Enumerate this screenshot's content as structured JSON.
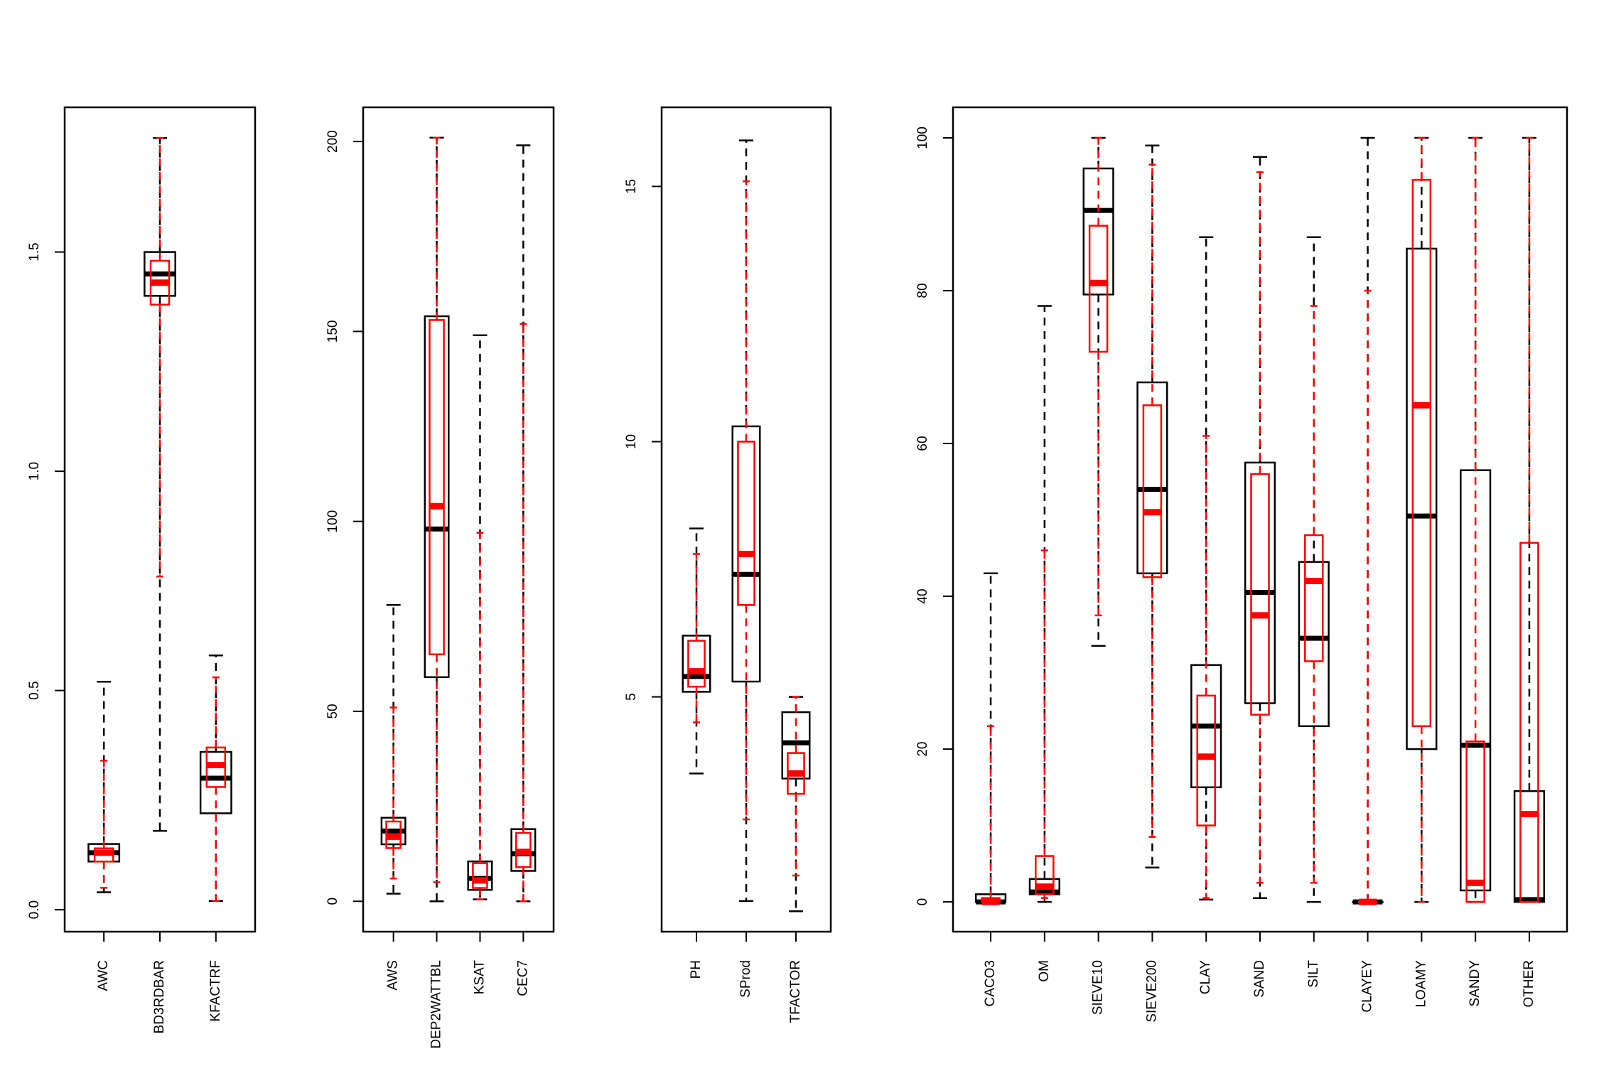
{
  "colors": {
    "series_a": "#000000",
    "series_b": "#ff0000",
    "background": "#ffffff"
  },
  "chart_data": [
    {
      "type": "boxplot",
      "ylim": [
        -0.05,
        1.83
      ],
      "yticks": [
        0.0,
        0.5,
        1.0,
        1.5
      ],
      "ytick_labels": [
        "0.0",
        "0.5",
        "1.0",
        "1.5"
      ],
      "categories": [
        "AWC",
        "BD3RDBAR",
        "KFACTRF"
      ],
      "series": [
        {
          "color": "#000000",
          "boxes": [
            {
              "min": 0.04,
              "q1": 0.11,
              "median": 0.13,
              "q3": 0.15,
              "max": 0.52
            },
            {
              "min": 0.18,
              "q1": 1.4,
              "median": 1.45,
              "q3": 1.5,
              "max": 1.76
            },
            {
              "min": 0.02,
              "q1": 0.22,
              "median": 0.3,
              "q3": 0.36,
              "max": 0.58
            }
          ]
        },
        {
          "color": "#ff0000",
          "boxes": [
            {
              "min": 0.05,
              "q1": 0.11,
              "median": 0.13,
              "q3": 0.14,
              "max": 0.34
            },
            {
              "min": 0.76,
              "q1": 1.38,
              "median": 1.43,
              "q3": 1.48,
              "max": 1.76
            },
            {
              "min": 0.02,
              "q1": 0.28,
              "median": 0.33,
              "q3": 0.37,
              "max": 0.53
            }
          ]
        }
      ]
    },
    {
      "type": "boxplot",
      "ylim": [
        -8,
        209
      ],
      "yticks": [
        0,
        50,
        100,
        150,
        200
      ],
      "ytick_labels": [
        "0",
        "50",
        "100",
        "150",
        "200"
      ],
      "categories": [
        "AWS",
        "DEP2WATTBL",
        "KSAT",
        "CEC7"
      ],
      "series": [
        {
          "color": "#000000",
          "boxes": [
            {
              "min": 2,
              "q1": 15,
              "median": 18.5,
              "q3": 22,
              "max": 78
            },
            {
              "min": 0,
              "q1": 59,
              "median": 98,
              "q3": 154,
              "max": 201
            },
            {
              "min": 0.5,
              "q1": 3,
              "median": 6,
              "q3": 10.5,
              "max": 149
            },
            {
              "min": 0,
              "q1": 8,
              "median": 12.5,
              "q3": 19,
              "max": 199
            }
          ]
        },
        {
          "color": "#ff0000",
          "boxes": [
            {
              "min": 6,
              "q1": 14,
              "median": 17,
              "q3": 21,
              "max": 51
            },
            {
              "min": 5,
              "q1": 65,
              "median": 104,
              "q3": 153,
              "max": 201
            },
            {
              "min": 0.5,
              "q1": 3.5,
              "median": 5.5,
              "q3": 10,
              "max": 97
            },
            {
              "min": 0,
              "q1": 9,
              "median": 13,
              "q3": 18,
              "max": 152
            }
          ]
        }
      ]
    },
    {
      "type": "boxplot",
      "ylim": [
        0.4,
        16.55
      ],
      "yticks": [
        5,
        10,
        15
      ],
      "ytick_labels": [
        "5",
        "10",
        "15"
      ],
      "categories": [
        "PH",
        "SProd",
        "TFACTOR"
      ],
      "series": [
        {
          "color": "#000000",
          "boxes": [
            {
              "min": 3.5,
              "q1": 5.1,
              "median": 5.4,
              "q3": 6.2,
              "max": 8.3
            },
            {
              "min": 1.0,
              "q1": 5.3,
              "median": 7.4,
              "q3": 10.3,
              "max": 15.9
            },
            {
              "min": 0.8,
              "q1": 3.4,
              "median": 4.1,
              "q3": 4.7,
              "max": 5.0
            }
          ]
        },
        {
          "color": "#ff0000",
          "boxes": [
            {
              "min": 4.5,
              "q1": 5.2,
              "median": 5.5,
              "q3": 6.1,
              "max": 7.8
            },
            {
              "min": 2.6,
              "q1": 6.8,
              "median": 7.8,
              "q3": 10.0,
              "max": 15.1
            },
            {
              "min": 1.5,
              "q1": 3.1,
              "median": 3.5,
              "q3": 3.9,
              "max": 5.0
            }
          ]
        }
      ]
    },
    {
      "type": "boxplot",
      "ylim": [
        -3.9,
        104
      ],
      "yticks": [
        0,
        20,
        40,
        60,
        80,
        100
      ],
      "ytick_labels": [
        "0",
        "20",
        "40",
        "60",
        "80",
        "100"
      ],
      "categories": [
        "CACO3",
        "OM",
        "SIEVE10",
        "SIEVE200",
        "CLAY",
        "SAND",
        "SILT",
        "CLAYEY",
        "LOAMY",
        "SANDY",
        "OTHER"
      ],
      "series": [
        {
          "color": "#000000",
          "boxes": [
            {
              "min": 0,
              "q1": 0,
              "median": 0,
              "q3": 1,
              "max": 43
            },
            {
              "min": 0,
              "q1": 1,
              "median": 1.3,
              "q3": 3,
              "max": 78
            },
            {
              "min": 33.5,
              "q1": 79.5,
              "median": 90.5,
              "q3": 96,
              "max": 100
            },
            {
              "min": 4.5,
              "q1": 43,
              "median": 54,
              "q3": 68,
              "max": 99
            },
            {
              "min": 0.3,
              "q1": 15,
              "median": 23,
              "q3": 31,
              "max": 87
            },
            {
              "min": 0.5,
              "q1": 26,
              "median": 40.5,
              "q3": 57.5,
              "max": 97.5
            },
            {
              "min": 0,
              "q1": 23,
              "median": 34.5,
              "q3": 44.5,
              "max": 87
            },
            {
              "min": 0,
              "q1": 0,
              "median": 0,
              "q3": 0,
              "max": 100
            },
            {
              "min": 0,
              "q1": 20,
              "median": 50.5,
              "q3": 85.5,
              "max": 100
            },
            {
              "min": 0,
              "q1": 1.5,
              "median": 20.5,
              "q3": 56.5,
              "max": 100
            },
            {
              "min": 0,
              "q1": 0,
              "median": 0.3,
              "q3": 14.5,
              "max": 100
            }
          ]
        },
        {
          "color": "#ff0000",
          "boxes": [
            {
              "min": 0,
              "q1": 0,
              "median": 0,
              "q3": 0.5,
              "max": 23
            },
            {
              "min": 0.5,
              "q1": 1,
              "median": 2,
              "q3": 6,
              "max": 46
            },
            {
              "min": 37.5,
              "q1": 72,
              "median": 81,
              "q3": 88.5,
              "max": 100
            },
            {
              "min": 8.5,
              "q1": 42.5,
              "median": 51,
              "q3": 65,
              "max": 96.5
            },
            {
              "min": 0.5,
              "q1": 10,
              "median": 19,
              "q3": 27,
              "max": 61
            },
            {
              "min": 2.5,
              "q1": 24.5,
              "median": 37.5,
              "q3": 56,
              "max": 95.5
            },
            {
              "min": 2.5,
              "q1": 31.5,
              "median": 42,
              "q3": 48,
              "max": 78
            },
            {
              "min": 0,
              "q1": 0,
              "median": 0,
              "q3": 0,
              "max": 80
            },
            {
              "min": 0,
              "q1": 23,
              "median": 65,
              "q3": 94.5,
              "max": 100
            },
            {
              "min": 0,
              "q1": 0,
              "median": 2.5,
              "q3": 21,
              "max": 100
            },
            {
              "min": 0,
              "q1": 0,
              "median": 11.5,
              "q3": 47,
              "max": 100
            }
          ]
        }
      ]
    }
  ]
}
